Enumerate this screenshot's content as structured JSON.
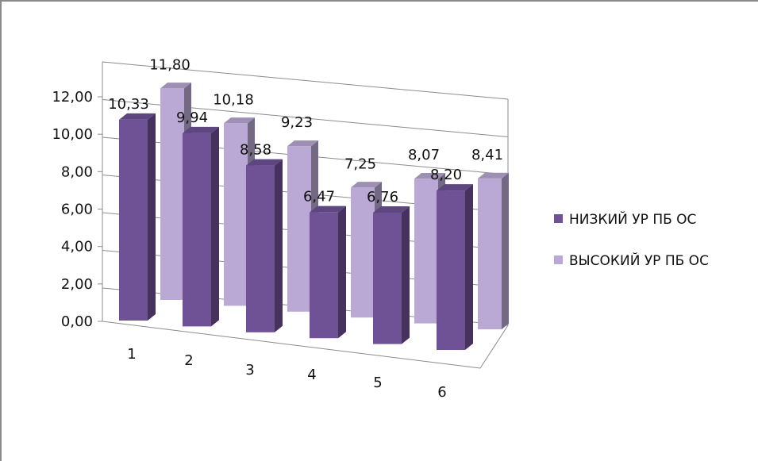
{
  "chart_data": {
    "type": "bar",
    "categories": [
      "1",
      "2",
      "3",
      "4",
      "5",
      "6"
    ],
    "series": [
      {
        "name": "НИЗКИЙ УР ПБ ОС",
        "values": [
          10.33,
          9.94,
          8.58,
          6.47,
          6.76,
          8.2
        ],
        "labels": [
          "10,33",
          "9,94",
          "8,58",
          "6,47",
          "6,76",
          "8,20"
        ],
        "color": "#6f5296"
      },
      {
        "name": "ВЫСОКИЙ УР ПБ ОС",
        "values": [
          11.8,
          10.18,
          9.23,
          7.25,
          8.07,
          8.41
        ],
        "labels": [
          "11,80",
          "10,18",
          "9,23",
          "7,25",
          "8,07",
          "8,41"
        ],
        "color": "#b9a9d4"
      }
    ],
    "y_ticks": [
      "0,00",
      "2,00",
      "4,00",
      "6,00",
      "8,00",
      "10,00",
      "12,00"
    ],
    "ylim": [
      0,
      12
    ],
    "grid": true,
    "legend_position": "right"
  }
}
